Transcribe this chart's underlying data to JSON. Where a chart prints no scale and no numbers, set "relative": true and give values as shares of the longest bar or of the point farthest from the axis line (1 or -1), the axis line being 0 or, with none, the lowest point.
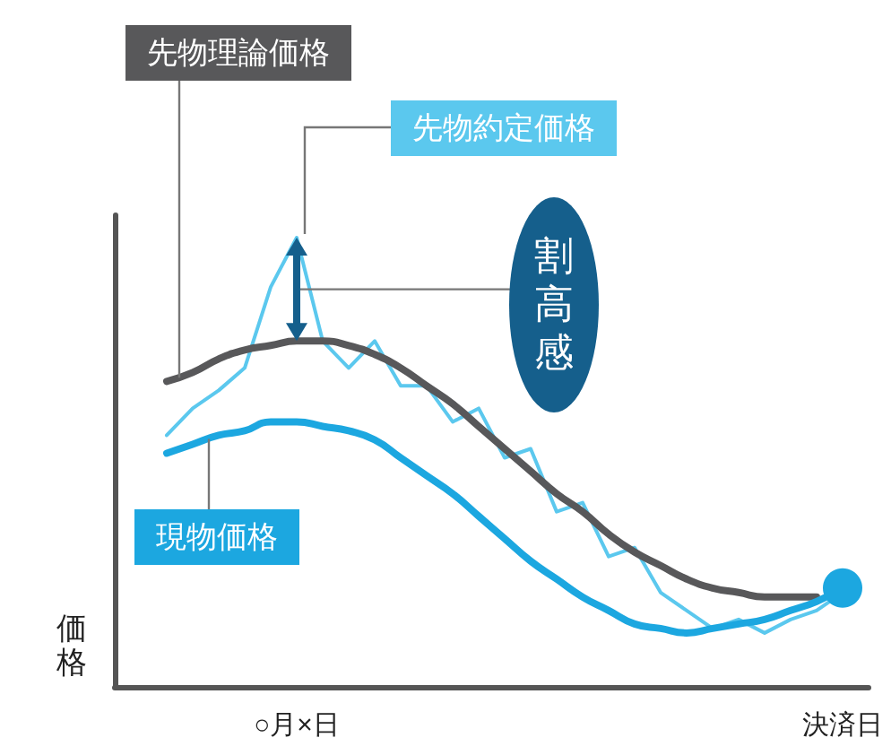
{
  "chart_data": {
    "type": "line",
    "relative": true,
    "ylabel": "価格",
    "legend": false,
    "grid": false,
    "marker": "none",
    "line_style": "solid",
    "categories": [
      null,
      null,
      null,
      null,
      null,
      null,
      null,
      "○月×日",
      null,
      null,
      null,
      null,
      null,
      null,
      null,
      null,
      null,
      null,
      null,
      null,
      null,
      null,
      null,
      null,
      null,
      null,
      null,
      null,
      "決済日",
      null
    ],
    "series": [
      {
        "name": "先物理論価格",
        "color": "#58585a",
        "values": [
          null,
          null,
          0.68,
          0.7,
          0.73,
          0.75,
          0.76,
          0.77,
          0.77,
          0.76,
          0.74,
          0.71,
          0.67,
          0.63,
          0.58,
          0.53,
          0.48,
          0.43,
          0.39,
          0.34,
          0.3,
          0.27,
          0.24,
          0.22,
          0.21,
          0.2,
          0.2,
          0.2,
          null,
          null
        ]
      },
      {
        "name": "先物約定価格",
        "color": "#5bc8ee",
        "values": [
          null,
          null,
          0.56,
          0.62,
          0.66,
          0.71,
          0.89,
          1,
          0.77,
          0.71,
          0.77,
          0.67,
          0.67,
          0.59,
          0.62,
          0.51,
          0.53,
          0.39,
          0.41,
          0.29,
          0.31,
          0.21,
          0.17,
          0.13,
          0.15,
          0.12,
          0.15,
          0.17,
          0.21,
          null
        ]
      },
      {
        "name": "現物価格",
        "color": "#1ca7e0",
        "values": [
          null,
          null,
          0.52,
          0.54,
          0.56,
          0.57,
          0.59,
          0.59,
          0.58,
          0.57,
          0.55,
          0.51,
          0.47,
          0.43,
          0.38,
          0.33,
          0.28,
          0.24,
          0.2,
          0.17,
          0.14,
          0.13,
          0.12,
          0.13,
          0.14,
          0.15,
          0.17,
          0.19,
          0.22,
          null
        ]
      }
    ],
    "annotations": [
      "割高感"
    ]
  }
}
